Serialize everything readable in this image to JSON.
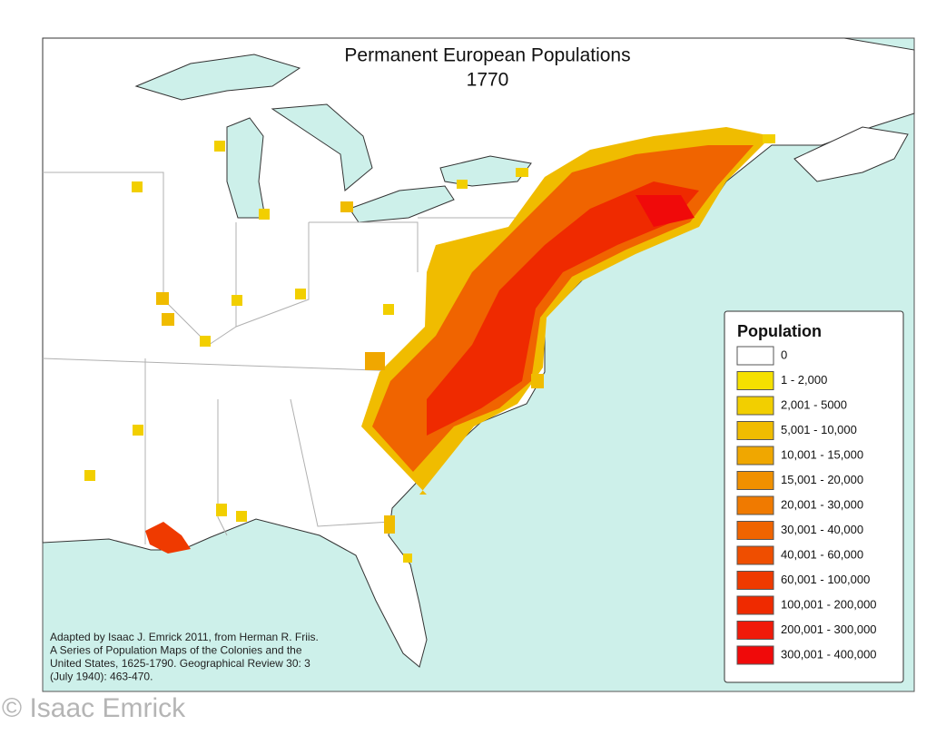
{
  "title": "Permanent European Populations",
  "subtitle": "1770",
  "legend": {
    "title": "Population",
    "items": [
      {
        "label": "0",
        "color": "#ffffff"
      },
      {
        "label": "1 - 2,000",
        "color": "#f5e000"
      },
      {
        "label": "2,001 - 5000",
        "color": "#f2cf00"
      },
      {
        "label": "5,001 - 10,000",
        "color": "#f0bc00"
      },
      {
        "label": "10,001 - 15,000",
        "color": "#f0a700"
      },
      {
        "label": "15,001 - 20,000",
        "color": "#f09000"
      },
      {
        "label": "20,001 - 30,000",
        "color": "#f07a00"
      },
      {
        "label": "30,001 - 40,000",
        "color": "#f06400"
      },
      {
        "label": "40,001 - 60,000",
        "color": "#ef4e00"
      },
      {
        "label": "60,001 - 100,000",
        "color": "#ef3a00"
      },
      {
        "label": "100,001 - 200,000",
        "color": "#ef2a00"
      },
      {
        "label": "200,001 - 300,000",
        "color": "#f01a0a"
      },
      {
        "label": "300,001 - 400,000",
        "color": "#f00a0a"
      }
    ]
  },
  "source": [
    "Adapted by Isaac J. Emrick 2011, from Herman R. Friis.",
    "A Series of Population Maps of the Colonies and the",
    "United States, 1625-1790. Geographical Review 30: 3",
    "(July 1940): 463-470."
  ],
  "watermark": "© Isaac Emrick"
}
